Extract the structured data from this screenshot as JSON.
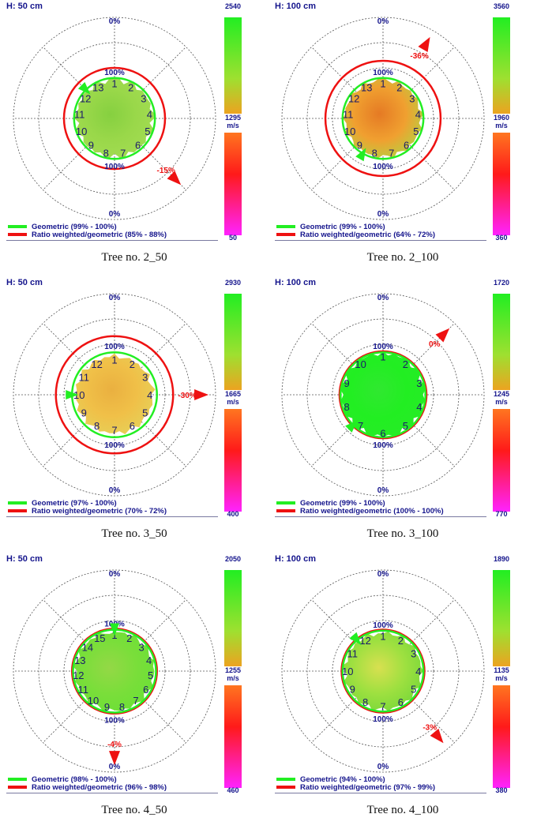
{
  "legend": {
    "geometric_color": "#22ee22",
    "ratio_color": "#ee1111"
  },
  "ring_labels": {
    "zero": "0%",
    "hundred": "100%",
    "unit": "m/s"
  },
  "panels": [
    {
      "id": "2_50",
      "caption": "Tree no. 2_50",
      "height": "H: 50 cm",
      "scale_max": "2540",
      "scale_mid": "1295",
      "scale_min": "50",
      "geometric": "Geometric (99% - 100%)",
      "ratio": "Ratio weighted/geometric (85% - 88%)",
      "change": "-15%",
      "change_angle": 135,
      "sensor_count": 13,
      "fill": [
        "#9ad84a",
        "#86d040",
        "#a2dc52"
      ],
      "inner_r": 0.38,
      "green_r": 0.4,
      "red_r": 0.5
    },
    {
      "id": "2_100",
      "caption": "Tree no. 2_100",
      "height": "H: 100 cm",
      "scale_max": "3560",
      "scale_mid": "1960",
      "scale_min": "360",
      "geometric": "Geometric (99% - 100%)",
      "ratio": "Ratio weighted/geometric (64% - 72%)",
      "change": "-36%",
      "change_angle": 30,
      "sensor_count": 13,
      "fill": [
        "#f0a030",
        "#e57a24",
        "#b8cf40"
      ],
      "inner_r": 0.38,
      "green_r": 0.4,
      "red_r": 0.57
    },
    {
      "id": "3_50",
      "caption": "Tree no. 3_50",
      "height": "H: 50 cm",
      "scale_max": "2930",
      "scale_mid": "1665",
      "scale_min": "400",
      "geometric": "Geometric (97% - 100%)",
      "ratio": "Ratio weighted/geometric (70% - 72%)",
      "change": "-30%",
      "change_angle": 90,
      "sensor_count": 12,
      "fill": [
        "#f0c048",
        "#eab040",
        "#e6d058"
      ],
      "inner_r": 0.38,
      "green_r": 0.42,
      "red_r": 0.58
    },
    {
      "id": "3_100",
      "caption": "Tree no. 3_100",
      "height": "H: 100 cm",
      "scale_max": "1720",
      "scale_mid": "1245",
      "scale_min": "770",
      "geometric": "Geometric (99% - 100%)",
      "ratio": "Ratio weighted/geometric (100% - 100%)",
      "change": "0%",
      "change_angle": 45,
      "sensor_count": 10,
      "fill": [
        "#22ee22",
        "#30e830",
        "#26ec26"
      ],
      "inner_r": 0.41,
      "green_r": 0.42,
      "red_r": 0.43
    },
    {
      "id": "4_50",
      "caption": "Tree no. 4_50",
      "height": "H: 50 cm",
      "scale_max": "2050",
      "scale_mid": "1255",
      "scale_min": "460",
      "geometric": "Geometric (98% - 100%)",
      "ratio": "Ratio weighted/geometric (96% - 98%)",
      "change": "-4%",
      "change_angle": 180,
      "sensor_count": 15,
      "fill": [
        "#7ade3a",
        "#94d846",
        "#6ce036"
      ],
      "inner_r": 0.39,
      "green_r": 0.41,
      "red_r": 0.42
    },
    {
      "id": "4_100",
      "caption": "Tree no. 4_100",
      "height": "H: 100 cm",
      "scale_max": "1890",
      "scale_mid": "1135",
      "scale_min": "380",
      "geometric": "Geometric (94% - 100%)",
      "ratio": "Ratio weighted/geometric (97% - 99%)",
      "change": "-3%",
      "change_angle": 140,
      "sensor_count": 12,
      "fill": [
        "#9ee040",
        "#d8e050",
        "#7ad83a"
      ],
      "inner_r": 0.38,
      "green_r": 0.4,
      "red_r": 0.41
    }
  ]
}
